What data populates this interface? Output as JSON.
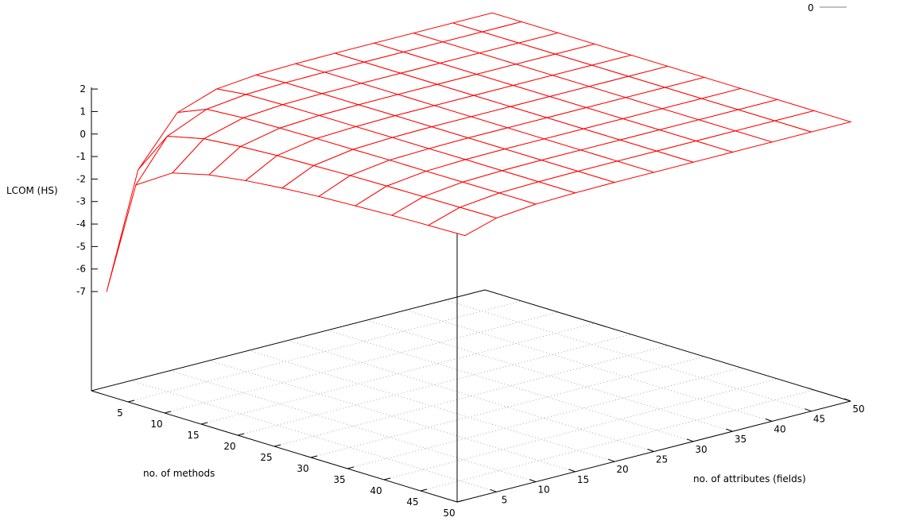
{
  "chart_data": {
    "type": "surface3d",
    "zlabel": "LCOM (HS)",
    "xlabel": "no. of methods",
    "ylabel": "no. of attributes (fields)",
    "x_ticks": [
      5,
      10,
      15,
      20,
      25,
      30,
      35,
      40,
      45,
      50
    ],
    "y_ticks": [
      5,
      10,
      15,
      20,
      25,
      30,
      35,
      40,
      45,
      50
    ],
    "z_ticks": [
      2,
      1,
      0,
      -1,
      -2,
      -3,
      -4,
      -5,
      -6,
      -7
    ],
    "xlim": [
      0,
      50
    ],
    "ylim": [
      0,
      50
    ],
    "legend": {
      "entries": [
        {
          "label": "0",
          "color": "#808080"
        }
      ],
      "position": "top-right"
    },
    "surface_color": "#ff0000",
    "methods": [
      1,
      5,
      10,
      15,
      20,
      25,
      30,
      35,
      40,
      45,
      50
    ],
    "attributes": [
      1,
      5,
      10,
      15,
      20,
      25,
      30,
      35,
      40,
      45,
      50
    ],
    "z": [
      [
        -7,
        -1.86,
        -0.83,
        -0.42,
        -0.18,
        -0.02,
        0.1,
        0.18,
        0.25,
        0.3,
        0.34
      ],
      [
        -1.94,
        -0.05,
        0.33,
        0.48,
        0.57,
        0.62,
        0.67,
        0.7,
        0.72,
        0.74,
        0.76
      ],
      [
        0.16,
        0.7,
        0.81,
        0.85,
        0.88,
        0.89,
        0.91,
        0.91,
        0.92,
        0.93,
        0.93
      ],
      [
        0.76,
        0.91,
        0.95,
        0.96,
        0.96,
        0.97,
        0.97,
        0.98,
        0.98,
        0.98,
        0.98
      ],
      [
        0.93,
        0.98,
        0.99,
        0.99,
        1,
        1,
        1,
        1,
        1,
        1,
        1
      ],
      [
        0.98,
        1,
        1,
        1,
        1,
        1,
        1,
        1,
        1,
        1,
        1
      ],
      [
        1,
        1,
        1,
        1,
        1,
        1,
        1,
        1,
        1,
        1,
        1
      ],
      [
        1,
        1,
        1,
        1,
        1,
        1,
        1,
        1,
        1,
        1,
        1
      ],
      [
        1,
        1,
        1,
        1,
        1,
        1,
        1,
        1,
        1,
        1,
        1
      ],
      [
        1,
        1,
        1,
        1,
        1,
        1,
        1,
        1,
        1,
        1,
        1
      ],
      [
        1,
        1,
        1,
        1,
        1,
        1,
        1,
        1,
        1,
        1,
        1
      ]
    ]
  }
}
